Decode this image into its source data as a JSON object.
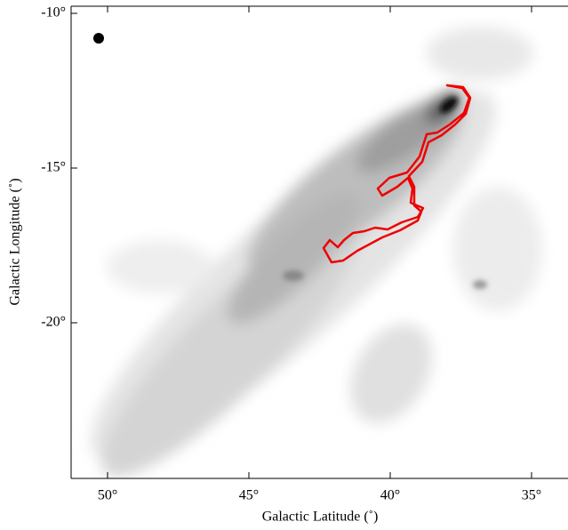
{
  "chart_data": {
    "type": "image",
    "xlabel": "Galactic Latitude (˚)",
    "ylabel": "Galactic Longitude (˚)",
    "xlim": [
      51.29,
      33.71
    ],
    "ylim": [
      -25.03,
      -9.77
    ],
    "xticks": [
      {
        "value": 50,
        "label": "50°"
      },
      {
        "value": 45,
        "label": "45°"
      },
      {
        "value": 40,
        "label": "40°"
      },
      {
        "value": 35,
        "label": "35°"
      }
    ],
    "yticks": [
      {
        "value": -10,
        "label": "-10°"
      },
      {
        "value": -15,
        "label": "-15°"
      },
      {
        "value": -20,
        "label": "-20°"
      }
    ]
  }
}
